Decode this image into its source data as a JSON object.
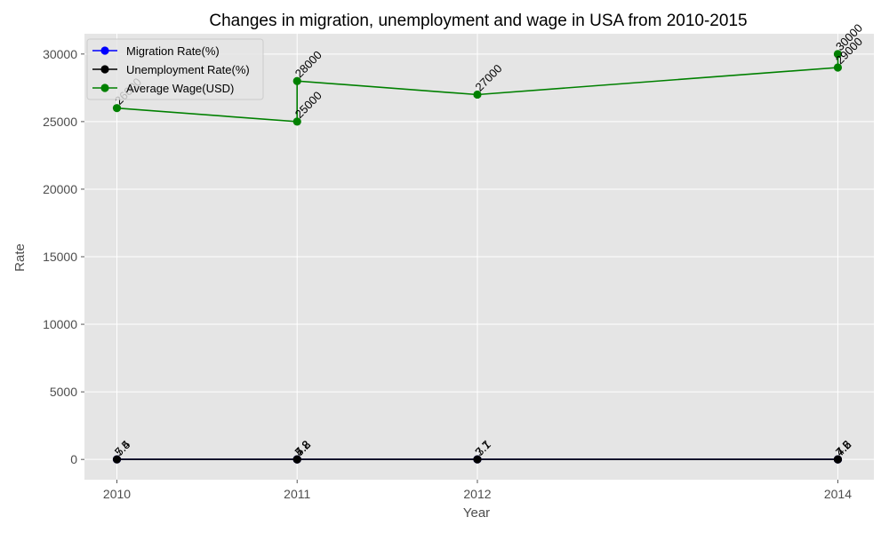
{
  "chart_data": {
    "type": "line",
    "title": "Changes in migration, unemployment and wage in USA from 2010-2015",
    "xlabel": "Year",
    "ylabel": "Rate",
    "x_ticks": [
      2010,
      2011,
      2012,
      2014
    ],
    "y_ticks": [
      0,
      5000,
      10000,
      15000,
      20000,
      25000,
      30000
    ],
    "xlim": [
      2009.82,
      2014.2
    ],
    "ylim": [
      -1500,
      31500
    ],
    "grid": true,
    "legend_position": "top-left",
    "series": [
      {
        "name": "Migration Rate(%)",
        "color": "#0000ff",
        "points": [
          {
            "x": 2010,
            "y": 7.4,
            "label": "7.4"
          },
          {
            "x": 2011,
            "y": 7.8,
            "label": "7.8"
          },
          {
            "x": 2011,
            "y": 7.2,
            "label": "7.2"
          },
          {
            "x": 2012,
            "y": 7.1,
            "label": "7.1"
          },
          {
            "x": 2014,
            "y": 7.5,
            "label": "7.5"
          },
          {
            "x": 2014,
            "y": 7.6,
            "label": "7.6"
          }
        ]
      },
      {
        "name": "Unemployment Rate(%)",
        "color": "#000000",
        "points": [
          {
            "x": 2010,
            "y": 5.5,
            "label": "5.5"
          },
          {
            "x": 2011,
            "y": 5.2,
            "label": "5.2"
          },
          {
            "x": 2011,
            "y": 4.8,
            "label": "4.8"
          },
          {
            "x": 2012,
            "y": 3.7,
            "label": "3.7"
          },
          {
            "x": 2014,
            "y": 4.5,
            "label": "4.5"
          },
          {
            "x": 2014,
            "y": 4.2,
            "label": "4.2"
          }
        ]
      },
      {
        "name": "Average Wage(USD)",
        "color": "#008000",
        "points": [
          {
            "x": 2010,
            "y": 26000,
            "label": "26000"
          },
          {
            "x": 2011,
            "y": 25000,
            "label": "25000"
          },
          {
            "x": 2011,
            "y": 28000,
            "label": "28000"
          },
          {
            "x": 2012,
            "y": 27000,
            "label": "27000"
          },
          {
            "x": 2014,
            "y": 29000,
            "label": "29000"
          },
          {
            "x": 2014,
            "y": 30000,
            "label": "30000"
          }
        ]
      }
    ]
  }
}
